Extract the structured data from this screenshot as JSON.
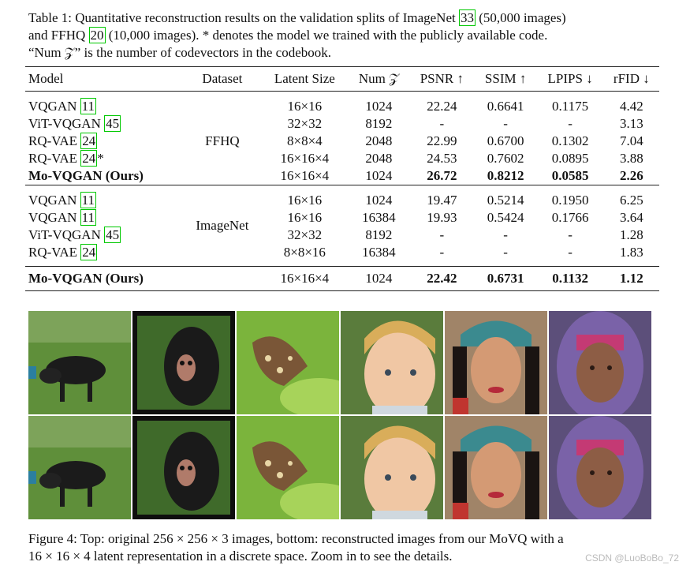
{
  "caption_top": {
    "line1_a": "Table 1: Quantitative reconstruction results on the validation splits of ImageNet ",
    "line1_cite": "33",
    "line1_b": " (50,000 images)",
    "line2_a": "and FFHQ ",
    "line2_cite": "20",
    "line2_b": " (10,000 images). * denotes the model we trained with the publicly available code.",
    "line3": "“Num 𝒵” is the number of codevectors in the codebook."
  },
  "table": {
    "headers": [
      "Model",
      "Dataset",
      "Latent Size",
      "Num 𝒵",
      "PSNR ↑",
      "SSIM ↑",
      "LPIPS ↓",
      "rFID ↓"
    ],
    "ffhq_label": "FFHQ",
    "imagenet_label": "ImageNet",
    "ffhq_rows": [
      {
        "model": "VQGAN ",
        "cite": "11",
        "suffix": "",
        "latent": "16×16",
        "num": "1024",
        "psnr": "22.24",
        "ssim": "0.6641",
        "lpips": "0.1175",
        "rfid": "4.42"
      },
      {
        "model": "ViT-VQGAN ",
        "cite": "45",
        "suffix": "",
        "latent": "32×32",
        "num": "8192",
        "psnr": "-",
        "ssim": "-",
        "lpips": "-",
        "rfid": "3.13"
      },
      {
        "model": "RQ-VAE ",
        "cite": "24",
        "suffix": "",
        "latent": "8×8×4",
        "num": "2048",
        "psnr": "22.99",
        "ssim": "0.6700",
        "lpips": "0.1302",
        "rfid": "7.04"
      },
      {
        "model": "RQ-VAE ",
        "cite": "24",
        "suffix": "*",
        "latent": "16×16×4",
        "num": "2048",
        "psnr": "24.53",
        "ssim": "0.7602",
        "lpips": "0.0895",
        "rfid": "3.88"
      },
      {
        "model": "Mo-VQGAN (Ours)",
        "cite": "",
        "suffix": "",
        "latent": "16×16×4",
        "num": "1024",
        "psnr": "26.72",
        "ssim": "0.8212",
        "lpips": "0.0585",
        "rfid": "2.26"
      }
    ],
    "imagenet_rows": [
      {
        "model": "VQGAN ",
        "cite": "11",
        "latent": "16×16",
        "num": "1024",
        "psnr": "19.47",
        "ssim": "0.5214",
        "lpips": "0.1950",
        "rfid": "6.25"
      },
      {
        "model": "VQGAN ",
        "cite": "11",
        "latent": "16×16",
        "num": "16384",
        "psnr": "19.93",
        "ssim": "0.5424",
        "lpips": "0.1766",
        "rfid": "3.64"
      },
      {
        "model": "ViT-VQGAN ",
        "cite": "45",
        "latent": "32×32",
        "num": "8192",
        "psnr": "-",
        "ssim": "-",
        "lpips": "-",
        "rfid": "1.28"
      },
      {
        "model": "RQ-VAE ",
        "cite": "24",
        "latent": "8×8×16",
        "num": "16384",
        "psnr": "-",
        "ssim": "-",
        "lpips": "-",
        "rfid": "1.83"
      }
    ],
    "ours_row": {
      "model": "Mo-VQGAN (Ours)",
      "latent": "16×16×4",
      "num": "1024",
      "psnr": "22.42",
      "ssim": "0.6731",
      "lpips": "0.1132",
      "rfid": "1.12"
    }
  },
  "caption_bottom": {
    "line1": "Figure 4: Top: original 256 × 256 × 3 images, bottom: reconstructed images from our MoVQ with a",
    "line2": "16 × 16 × 4 latent representation in a discrete space. Zoom in to see the details."
  },
  "watermark": "CSDN @LuoBoBo_72",
  "images": [
    "dog-photo",
    "monkey-photo",
    "butterfly-photo",
    "child-photo",
    "woman-photo",
    "elderly-woman-photo"
  ]
}
